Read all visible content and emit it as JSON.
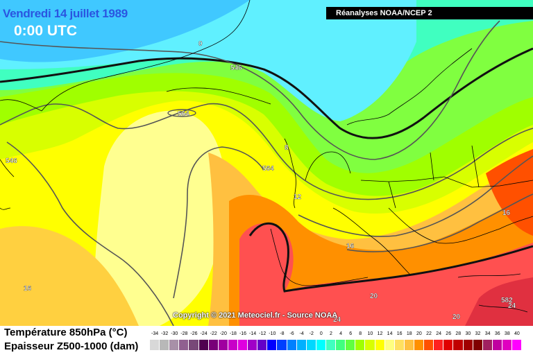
{
  "header": {
    "date": "Vendredi 14 juillet 1989",
    "time": "0:00 UTC",
    "source": "Réanalyses NOAA/NCEP 2"
  },
  "copyright": "Copyright © 2021 Meteociel.fr - Source NOAA",
  "legend": {
    "temperature_label": "Température 850hPa (°C)",
    "thickness_label": "Epaisseur Z500-1000 (dam)",
    "scale": [
      {
        "label": "-34",
        "color": "#d8d8d8"
      },
      {
        "label": "-32",
        "color": "#b8b8b8"
      },
      {
        "label": "-30",
        "color": "#a890a8"
      },
      {
        "label": "-28",
        "color": "#906090"
      },
      {
        "label": "-26",
        "color": "#784878"
      },
      {
        "label": "-24",
        "color": "#500050"
      },
      {
        "label": "-22",
        "color": "#780078"
      },
      {
        "label": "-20",
        "color": "#a000a0"
      },
      {
        "label": "-18",
        "color": "#c800c8"
      },
      {
        "label": "-16",
        "color": "#e000e0"
      },
      {
        "label": "-14",
        "color": "#a000c8"
      },
      {
        "label": "-12",
        "color": "#6400c8"
      },
      {
        "label": "-10",
        "color": "#0000ff"
      },
      {
        "label": "-8",
        "color": "#0040ff"
      },
      {
        "label": "-6",
        "color": "#0080ff"
      },
      {
        "label": "-4",
        "color": "#00b0ff"
      },
      {
        "label": "-2",
        "color": "#00d8ff"
      },
      {
        "label": "0",
        "color": "#00ffff"
      },
      {
        "label": "2",
        "color": "#40ffc0"
      },
      {
        "label": "4",
        "color": "#40ff80"
      },
      {
        "label": "6",
        "color": "#60ff40"
      },
      {
        "label": "8",
        "color": "#a0ff00"
      },
      {
        "label": "10",
        "color": "#d8ff00"
      },
      {
        "label": "12",
        "color": "#ffff00"
      },
      {
        "label": "14",
        "color": "#ffff80"
      },
      {
        "label": "16",
        "color": "#ffe060"
      },
      {
        "label": "18",
        "color": "#ffc040"
      },
      {
        "label": "20",
        "color": "#ff9000"
      },
      {
        "label": "22",
        "color": "#ff5000"
      },
      {
        "label": "24",
        "color": "#ff2020"
      },
      {
        "label": "26",
        "color": "#e00000"
      },
      {
        "label": "28",
        "color": "#c00000"
      },
      {
        "label": "30",
        "color": "#a00000"
      },
      {
        "label": "32",
        "color": "#800000"
      },
      {
        "label": "34",
        "color": "#a02060"
      },
      {
        "label": "36",
        "color": "#c000a0"
      },
      {
        "label": "38",
        "color": "#e000c0"
      },
      {
        "label": "40",
        "color": "#ff00ff"
      }
    ]
  },
  "contour_labels": [
    "0",
    "546",
    "564",
    "546",
    "564",
    "8",
    "12",
    "16",
    "16",
    "20",
    "20",
    "24",
    "16",
    "582",
    "24"
  ]
}
